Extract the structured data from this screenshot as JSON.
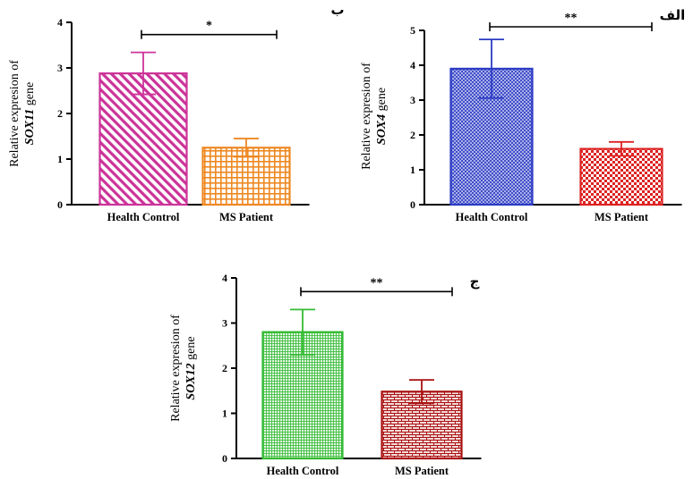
{
  "chart_data": [
    {
      "type": "bar",
      "panel_label": "ب",
      "categories": [
        "Health Control",
        "MS Patient"
      ],
      "values": [
        2.88,
        1.25
      ],
      "errors": [
        0.46,
        0.2
      ],
      "ylabel_line1": "Relative expresion of",
      "ylabel_gene": "SOX11",
      "ylabel_suffix": "gene",
      "ylim": [
        0,
        4
      ],
      "yticks": [
        0,
        1,
        2,
        3,
        4
      ],
      "significance": "*",
      "bar_colors": [
        "#cc3399",
        "#ee8822"
      ],
      "patterns": [
        "diagonal-stripes",
        "grid"
      ]
    },
    {
      "type": "bar",
      "panel_label": "الف",
      "categories": [
        "Health Control",
        "MS Patient"
      ],
      "values": [
        3.9,
        1.6
      ],
      "errors": [
        0.84,
        0.2
      ],
      "ylabel_line1": "Relative expresion of",
      "ylabel_gene": "SOX4",
      "ylabel_suffix": "gene",
      "ylim": [
        0,
        5
      ],
      "yticks": [
        0,
        1,
        2,
        3,
        4,
        5
      ],
      "significance": "**",
      "bar_colors": [
        "#2b3bc4",
        "#dd2222"
      ],
      "patterns": [
        "crosshatch",
        "checker"
      ]
    },
    {
      "type": "bar",
      "panel_label": "ج",
      "categories": [
        "Health Control",
        "MS Patient"
      ],
      "values": [
        2.8,
        1.48
      ],
      "errors": [
        0.5,
        0.26
      ],
      "ylabel_line1": "Relative expresion of",
      "ylabel_gene": "SOX12",
      "ylabel_suffix": "gene",
      "ylim": [
        0,
        4
      ],
      "yticks": [
        0,
        1,
        2,
        3,
        4
      ],
      "significance": "**",
      "bar_colors": [
        "#33bb33",
        "#aa1111"
      ],
      "patterns": [
        "fine-grid",
        "brick"
      ]
    }
  ]
}
